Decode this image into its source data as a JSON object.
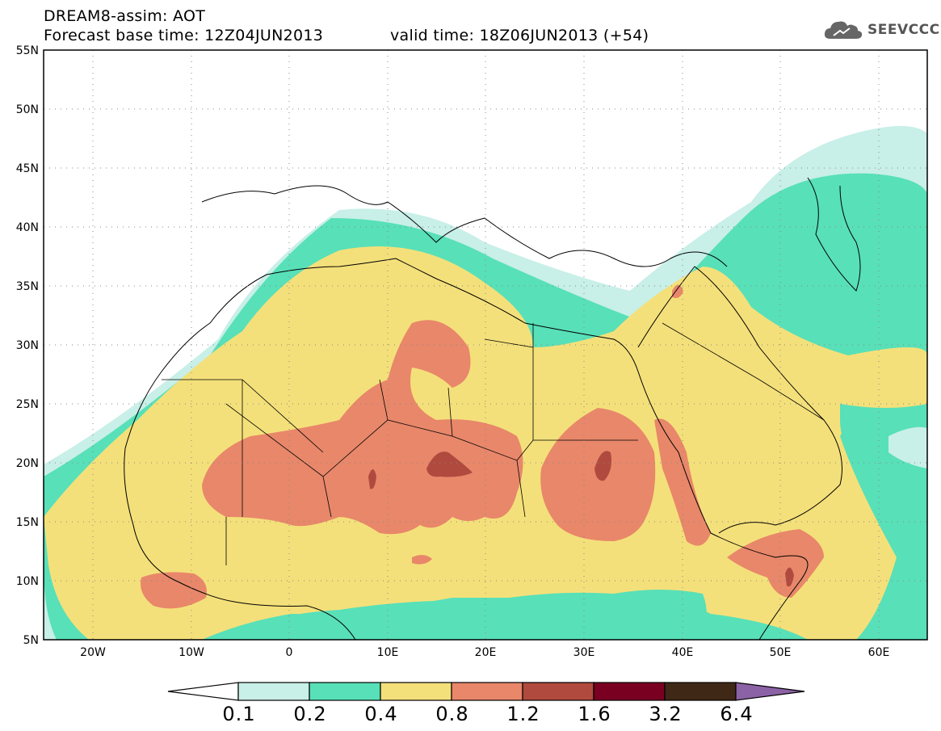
{
  "title": {
    "line1": "DREAM8-assim: AOT",
    "line2": "Forecast base time: 12Z04JUN2013",
    "valid": "valid time: 18Z06JUN2013 (+54)"
  },
  "logo": {
    "text": "SEEVCCC",
    "icon": "cloud-icon"
  },
  "axes": {
    "lat_labels": [
      "55N",
      "50N",
      "45N",
      "40N",
      "35N",
      "30N",
      "25N",
      "20N",
      "15N",
      "10N",
      "5N"
    ],
    "lat_values": [
      55,
      50,
      45,
      40,
      35,
      30,
      25,
      20,
      15,
      10,
      5
    ],
    "lon_labels": [
      "20W",
      "10W",
      "0",
      "10E",
      "20E",
      "30E",
      "40E",
      "50E",
      "60E"
    ],
    "lon_values": [
      -20,
      -10,
      0,
      10,
      20,
      30,
      40,
      50,
      60
    ],
    "lon_range": [
      -25,
      65
    ],
    "lat_range": [
      5,
      55
    ],
    "grid": "dotted"
  },
  "colorbar": {
    "labels": [
      "0.1",
      "0.2",
      "0.4",
      "0.8",
      "1.2",
      "1.6",
      "3.2",
      "6.4"
    ],
    "colors": [
      "#ffffff",
      "#c8efe8",
      "#58e0b8",
      "#f4e07a",
      "#e8876a",
      "#b14a3e",
      "#7a0022",
      "#402816",
      "#8c62a6"
    ]
  },
  "colors": {
    "c01": "#c8efe8",
    "c02": "#58e0b8",
    "c04": "#f4e07a",
    "c08": "#e8876a",
    "c12": "#b14a3e",
    "c16": "#7a0022",
    "land": "#ffffff",
    "border": "#000000"
  }
}
